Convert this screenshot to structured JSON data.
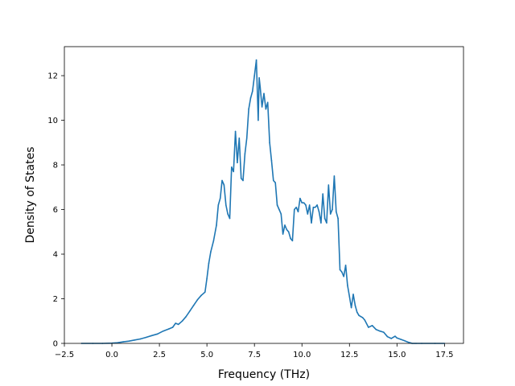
{
  "chart_data": {
    "type": "line",
    "title": "",
    "xlabel": "Frequency (THz)",
    "ylabel": "Density of States",
    "xlim": [
      -2.5,
      18.5
    ],
    "ylim": [
      0,
      13.3
    ],
    "grid": false,
    "xticks": [
      -2.5,
      0.0,
      2.5,
      5.0,
      7.5,
      10.0,
      12.5,
      15.0,
      17.5
    ],
    "xtick_labels": [
      "−2.5",
      "0.0",
      "2.5",
      "5.0",
      "7.5",
      "10.0",
      "12.5",
      "15.0",
      "17.5"
    ],
    "yticks": [
      0,
      2,
      4,
      6,
      8,
      10,
      12
    ],
    "ytick_labels": [
      "0",
      "2",
      "4",
      "6",
      "8",
      "10",
      "12"
    ],
    "colors": {
      "line": "#1f77b4",
      "axes": "#000000",
      "background": "#ffffff"
    },
    "series": [
      {
        "x": [
          -1.6,
          -1.0,
          -0.5,
          0.0,
          0.3,
          0.6,
          0.9,
          1.2,
          1.5,
          1.8,
          2.1,
          2.4,
          2.7,
          3.0,
          3.2,
          3.35,
          3.5,
          3.7,
          3.9,
          4.1,
          4.3,
          4.5,
          4.7,
          4.9,
          5.0,
          5.1,
          5.2,
          5.35,
          5.5,
          5.6,
          5.7,
          5.8,
          5.9,
          6.0,
          6.1,
          6.2,
          6.3,
          6.4,
          6.5,
          6.6,
          6.7,
          6.8,
          6.9,
          7.0,
          7.1,
          7.2,
          7.3,
          7.4,
          7.5,
          7.6,
          7.7,
          7.75,
          7.8,
          7.9,
          8.0,
          8.1,
          8.2,
          8.3,
          8.4,
          8.5,
          8.6,
          8.7,
          8.8,
          8.9,
          9.0,
          9.1,
          9.2,
          9.3,
          9.4,
          9.5,
          9.6,
          9.7,
          9.8,
          9.9,
          10.0,
          10.1,
          10.2,
          10.3,
          10.4,
          10.5,
          10.6,
          10.7,
          10.8,
          10.9,
          11.0,
          11.1,
          11.2,
          11.3,
          11.4,
          11.5,
          11.6,
          11.7,
          11.8,
          11.9,
          12.0,
          12.1,
          12.2,
          12.3,
          12.4,
          12.5,
          12.6,
          12.7,
          12.8,
          12.9,
          13.0,
          13.1,
          13.2,
          13.3,
          13.5,
          13.7,
          13.9,
          14.1,
          14.3,
          14.5,
          14.7,
          14.9,
          15.0,
          15.2,
          15.4,
          15.6,
          15.8,
          15.9,
          16.0,
          16.3,
          17.0,
          17.5
        ],
        "y": [
          0.0,
          0.0,
          0.0,
          0.01,
          0.03,
          0.07,
          0.1,
          0.15,
          0.2,
          0.27,
          0.35,
          0.42,
          0.55,
          0.65,
          0.72,
          0.9,
          0.85,
          1.0,
          1.2,
          1.45,
          1.7,
          1.95,
          2.15,
          2.3,
          2.9,
          3.6,
          4.1,
          4.6,
          5.3,
          6.2,
          6.5,
          7.3,
          7.1,
          6.2,
          5.8,
          5.6,
          7.9,
          7.7,
          9.5,
          8.1,
          9.2,
          7.4,
          7.3,
          8.5,
          9.2,
          10.5,
          11.0,
          11.3,
          12.0,
          12.7,
          10.0,
          11.9,
          11.5,
          10.6,
          11.2,
          10.5,
          10.8,
          9.0,
          8.2,
          7.3,
          7.2,
          6.2,
          6.0,
          5.8,
          4.9,
          5.3,
          5.1,
          5.0,
          4.7,
          4.6,
          6.0,
          6.1,
          5.9,
          6.5,
          6.3,
          6.3,
          6.2,
          5.8,
          6.2,
          5.4,
          6.1,
          6.1,
          6.2,
          5.9,
          5.4,
          6.7,
          5.6,
          5.4,
          7.1,
          5.8,
          6.0,
          7.5,
          5.9,
          5.6,
          3.3,
          3.2,
          3.0,
          3.5,
          2.6,
          2.1,
          1.6,
          2.2,
          1.7,
          1.4,
          1.25,
          1.2,
          1.15,
          1.05,
          0.72,
          0.8,
          0.62,
          0.55,
          0.5,
          0.3,
          0.22,
          0.32,
          0.24,
          0.18,
          0.12,
          0.05,
          0.0,
          0.0,
          0.0,
          0.0,
          0.0,
          0.0
        ]
      }
    ]
  }
}
